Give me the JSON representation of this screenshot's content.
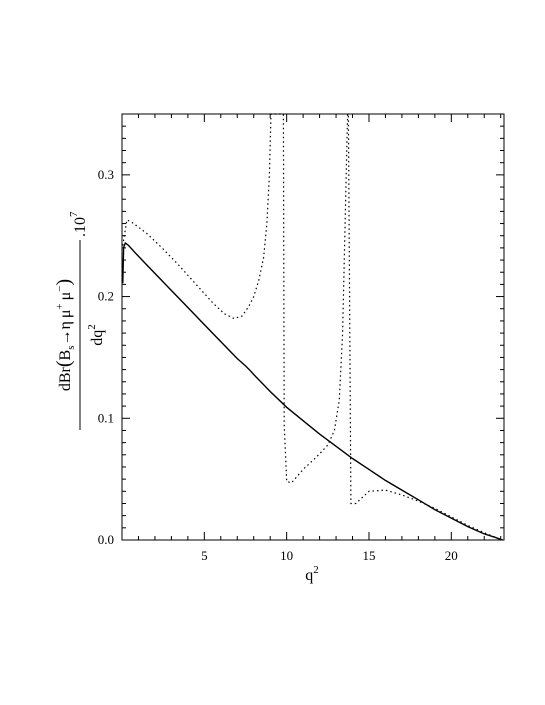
{
  "chart_data": {
    "type": "line",
    "title": "",
    "xlabel": "q",
    "xlabel_sup": "2",
    "ylabel": {
      "numerator_prefix": "dBr",
      "B": "B",
      "B_sub": "s",
      "arrow": "→",
      "eta": "η",
      "mu_plus": "μ",
      "mu_plus_sup": "+",
      "mu_minus": "μ",
      "mu_minus_sup": "−",
      "denominator": "dq",
      "denominator_sup": "2",
      "scale": ".10",
      "scale_sup": "7"
    },
    "xlim": [
      0,
      23.2
    ],
    "ylim": [
      0,
      0.35
    ],
    "x_ticks": [
      {
        "value": 5,
        "label": "5"
      },
      {
        "value": 10,
        "label": "10"
      },
      {
        "value": 15,
        "label": "15"
      },
      {
        "value": 20,
        "label": "20"
      }
    ],
    "y_ticks": [
      {
        "value": 0.0,
        "label": "0.0"
      },
      {
        "value": 0.1,
        "label": "0.1"
      },
      {
        "value": 0.2,
        "label": "0.2"
      },
      {
        "value": 0.3,
        "label": "0.3"
      }
    ],
    "grid": false,
    "legend": "none",
    "series": [
      {
        "style": "solid",
        "x": [
          0.05,
          0.1,
          0.2,
          0.4,
          0.8,
          1.5,
          2,
          3,
          4,
          5,
          6,
          7,
          7.5,
          7.8,
          8,
          9,
          10,
          11,
          12,
          13,
          14,
          15,
          16,
          17,
          18,
          19,
          20,
          21,
          22,
          22.7,
          23.1
        ],
        "y": [
          0.211,
          0.24,
          0.244,
          0.242,
          0.236,
          0.226,
          0.219,
          0.205,
          0.191,
          0.177,
          0.163,
          0.149,
          0.143,
          0.139,
          0.136,
          0.122,
          0.109,
          0.098,
          0.087,
          0.077,
          0.067,
          0.058,
          0.049,
          0.041,
          0.033,
          0.025,
          0.018,
          0.011,
          0.005,
          0.002,
          0.0
        ]
      },
      {
        "style": "dotted",
        "x": [
          0.05,
          0.3,
          0.6,
          1.5,
          2.5,
          3.5,
          4.5,
          5.5,
          6.2,
          6.8,
          7.3,
          7.7,
          8.0,
          8.3,
          8.6,
          8.8,
          8.95,
          9.05,
          9.5,
          9.8,
          9.85,
          10.0,
          10.3,
          11,
          11.8,
          12.5,
          12.9,
          13.2,
          13.4,
          13.55,
          13.7,
          13.75,
          13.9,
          14.2,
          15,
          16,
          17,
          18,
          19,
          20,
          21,
          22,
          22.7,
          23.1
        ],
        "y": [
          0.242,
          0.263,
          0.261,
          0.252,
          0.239,
          0.225,
          0.21,
          0.195,
          0.186,
          0.182,
          0.184,
          0.192,
          0.2,
          0.213,
          0.232,
          0.26,
          0.3,
          0.35,
          0.35,
          0.35,
          0.095,
          0.048,
          0.047,
          0.058,
          0.068,
          0.078,
          0.09,
          0.115,
          0.17,
          0.26,
          0.35,
          0.35,
          0.03,
          0.03,
          0.04,
          0.041,
          0.037,
          0.032,
          0.026,
          0.019,
          0.012,
          0.006,
          0.002,
          0.0
        ]
      }
    ]
  }
}
